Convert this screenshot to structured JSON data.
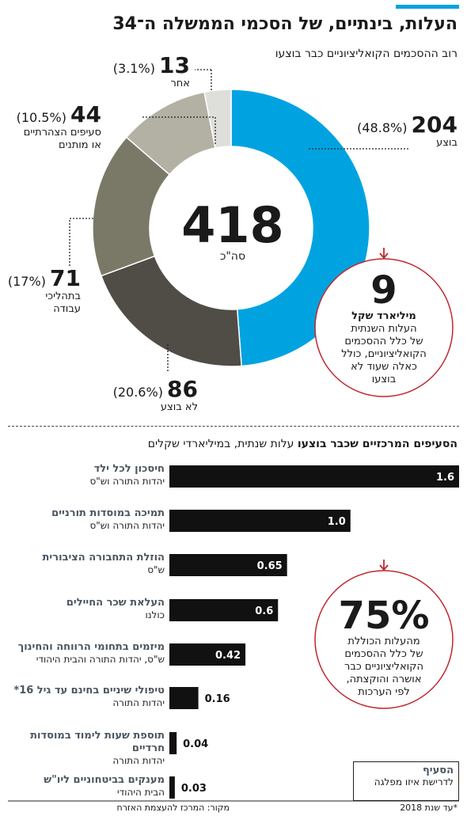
{
  "title": "העלות, בינתיים, של הסכמי הממשלה ה־34",
  "subtitle": "רוב ההסכמים הקואליציוניים כבר בוצעו",
  "colors": {
    "accent": "#00a3e0",
    "bubble_border": "#c0272d",
    "bar": "#111111"
  },
  "chart_data": [
    {
      "type": "pie",
      "donut": true,
      "total_value": "418",
      "total_label": "סה\"כ",
      "slices": [
        {
          "label": "בוצע",
          "value": 204,
          "value_label": "204",
          "pct": "(48.8%)",
          "color": "#00a3e0"
        },
        {
          "label": "לא בוצע",
          "value": 86,
          "value_label": "86",
          "pct": "(20.6%)",
          "color": "#4f4d45"
        },
        {
          "label": "בתהליכי עבודה",
          "value": 71,
          "value_label": "71",
          "pct": "(17%)",
          "color": "#7a7968"
        },
        {
          "label": "סעיפים הצהרתיים או מותנים",
          "value": 44,
          "value_label": "44",
          "pct": "(10.5%)",
          "color": "#b2b1a4"
        },
        {
          "label": "אחר",
          "value": 13,
          "value_label": "13",
          "pct": "(3.1%)",
          "color": "#dededa"
        }
      ]
    },
    {
      "type": "bar",
      "orientation": "horizontal",
      "title": "הסעיפים המרכזיים שכבר בוצעו",
      "subtitle": "עלות שנתית, במיליארדי שקלים",
      "categories": [
        "חיסכון לכל ילד",
        "תמיכה במוסדות תורניים",
        "הוזלת התחבורה הציבורית",
        "העלאת שכר החיילים",
        "מיזמים בתחומי הרווחה והחינוך",
        "טיפולי שיניים בחינם עד גיל 16*",
        "תוספת שעות לימוד במוסדות חרדיים",
        "מענקים בביטחוניים ליו\"ש"
      ],
      "parties": [
        "יהדות התורה וש\"ס",
        "יהדות התורה וש\"ס",
        "ש\"ס",
        "כולנו",
        "ש\"ס, יהדות התורה והבית היהודי",
        "יהדות התורה",
        "יהדות התורה",
        "הבית היהודי"
      ],
      "values": [
        1.6,
        1.0,
        0.65,
        0.6,
        0.42,
        0.16,
        0.04,
        0.03
      ],
      "value_labels": [
        "1.6",
        "1.0",
        "0.65",
        "0.6",
        "0.42",
        "0.16",
        "0.04",
        "0.03"
      ],
      "xlim": [
        0,
        1.6
      ]
    }
  ],
  "bubble1": {
    "number": "9",
    "bold": "מיליארד שקל",
    "text": [
      "העלות השנתית",
      "של כלל ההסכמים",
      "הקואליציוניים, כולל",
      "כאלה שעוד לא",
      "בוצעו"
    ]
  },
  "bubble2": {
    "number": "75%",
    "text": [
      "מהעלות הכוללת",
      "של כלל ההסכמים",
      "הקואליציוניים כבר",
      "אושרה והוקצתה,",
      "לפי הערכות"
    ]
  },
  "legend": {
    "title": "הסעיף",
    "sub": "לדרישת איזו מפלגה"
  },
  "footer": {
    "source": "מקור: המרכז להעצמת האזרח",
    "note": "*עד שנת 2018"
  }
}
